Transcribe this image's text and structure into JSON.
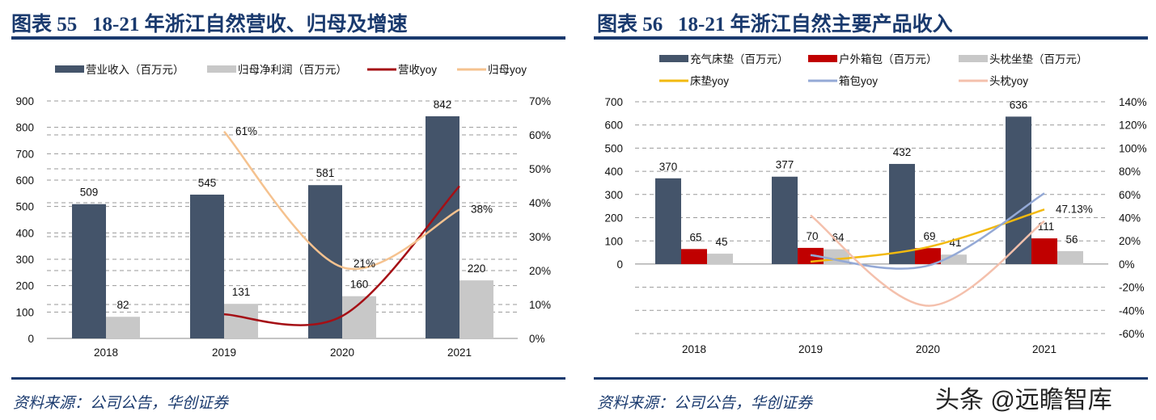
{
  "watermark": "头条 @远瞻智库",
  "colors": {
    "title": "#1a3a6e",
    "dark_bar": "#44546a",
    "gray_bar": "#c8c8c8",
    "red_bar": "#c00000",
    "dark_red_line": "#a50f15",
    "peach_line": "#f5c28f",
    "yellow_line": "#f2b90f",
    "blue_line": "#94a9d6",
    "pink_line": "#f4c0ac",
    "negative_tick": "#e00000"
  },
  "chart_data": [
    {
      "type": "bar+line",
      "title": "图表 55   18-21 年浙江自然营收、归母及增速",
      "source": "资料来源：公司公告，华创证券",
      "categories": [
        "2018",
        "2019",
        "2020",
        "2021"
      ],
      "ylim": [
        0,
        900
      ],
      "yticks": [
        "0",
        "100",
        "200",
        "300",
        "400",
        "500",
        "600",
        "700",
        "800",
        "900"
      ],
      "y2lim": [
        0,
        70
      ],
      "y2ticks": [
        "0%",
        "10%",
        "20%",
        "30%",
        "40%",
        "50%",
        "60%",
        "70%"
      ],
      "grid": true,
      "legend_position": "top",
      "bar_series": [
        {
          "name": "营业收入（百万元）",
          "values": [
            509,
            545,
            581,
            842
          ],
          "labels": [
            "509",
            "545",
            "581",
            "842"
          ],
          "color": "#44546a"
        },
        {
          "name": "归母净利润（百万元）",
          "values": [
            82,
            131,
            160,
            220
          ],
          "labels": [
            "82",
            "131",
            "160",
            "220"
          ],
          "color": "#c8c8c8"
        }
      ],
      "line_series": [
        {
          "name": "营收yoy",
          "values": [
            null,
            7.1,
            6.6,
            44.9
          ],
          "labels": [
            null,
            null,
            null,
            null
          ],
          "color": "#a50f15"
        },
        {
          "name": "归母yoy",
          "values": [
            null,
            61,
            21,
            38
          ],
          "labels": [
            null,
            "61%",
            "21%",
            "38%"
          ],
          "color": "#f5c28f"
        }
      ]
    },
    {
      "type": "bar+line",
      "title": "图表 56   18-21 年浙江自然主要产品收入",
      "source": "资料来源：公司公告，华创证券",
      "categories": [
        "2018",
        "2019",
        "2020",
        "2021"
      ],
      "ylim": [
        0,
        700
      ],
      "yticks": [
        "0",
        "100",
        "200",
        "300",
        "400",
        "500",
        "600",
        "700"
      ],
      "y2lim": [
        -60,
        140
      ],
      "y2ticks": [
        "-60%",
        "-40%",
        "-20%",
        "0%",
        "20%",
        "40%",
        "60%",
        "80%",
        "100%",
        "120%",
        "140%"
      ],
      "grid": true,
      "legend_position": "top",
      "bar_series": [
        {
          "name": "充气床垫（百万元）",
          "values": [
            370,
            377,
            432,
            636
          ],
          "labels": [
            "370",
            "377",
            "432",
            "636"
          ],
          "color": "#44546a"
        },
        {
          "name": "户外箱包（百万元）",
          "values": [
            65,
            70,
            69,
            111
          ],
          "labels": [
            "65",
            "70",
            "69",
            "111"
          ],
          "color": "#c00000"
        },
        {
          "name": "头枕坐垫（百万元）",
          "values": [
            45,
            64,
            41,
            56
          ],
          "labels": [
            "45",
            "64",
            "41",
            "56"
          ],
          "color": "#c8c8c8"
        }
      ],
      "line_series": [
        {
          "name": "床垫yoy",
          "values": [
            null,
            2,
            14.6,
            47.13
          ],
          "labels": [
            null,
            null,
            null,
            "47.13%"
          ],
          "color": "#f2b90f"
        },
        {
          "name": "箱包yoy",
          "values": [
            null,
            7.7,
            -1.4,
            61
          ],
          "labels": [
            null,
            null,
            null,
            null
          ],
          "color": "#94a9d6"
        },
        {
          "name": "头枕yoy",
          "values": [
            null,
            42,
            -36,
            37
          ],
          "labels": [
            null,
            null,
            null,
            null
          ],
          "color": "#f4c0ac"
        }
      ]
    }
  ]
}
